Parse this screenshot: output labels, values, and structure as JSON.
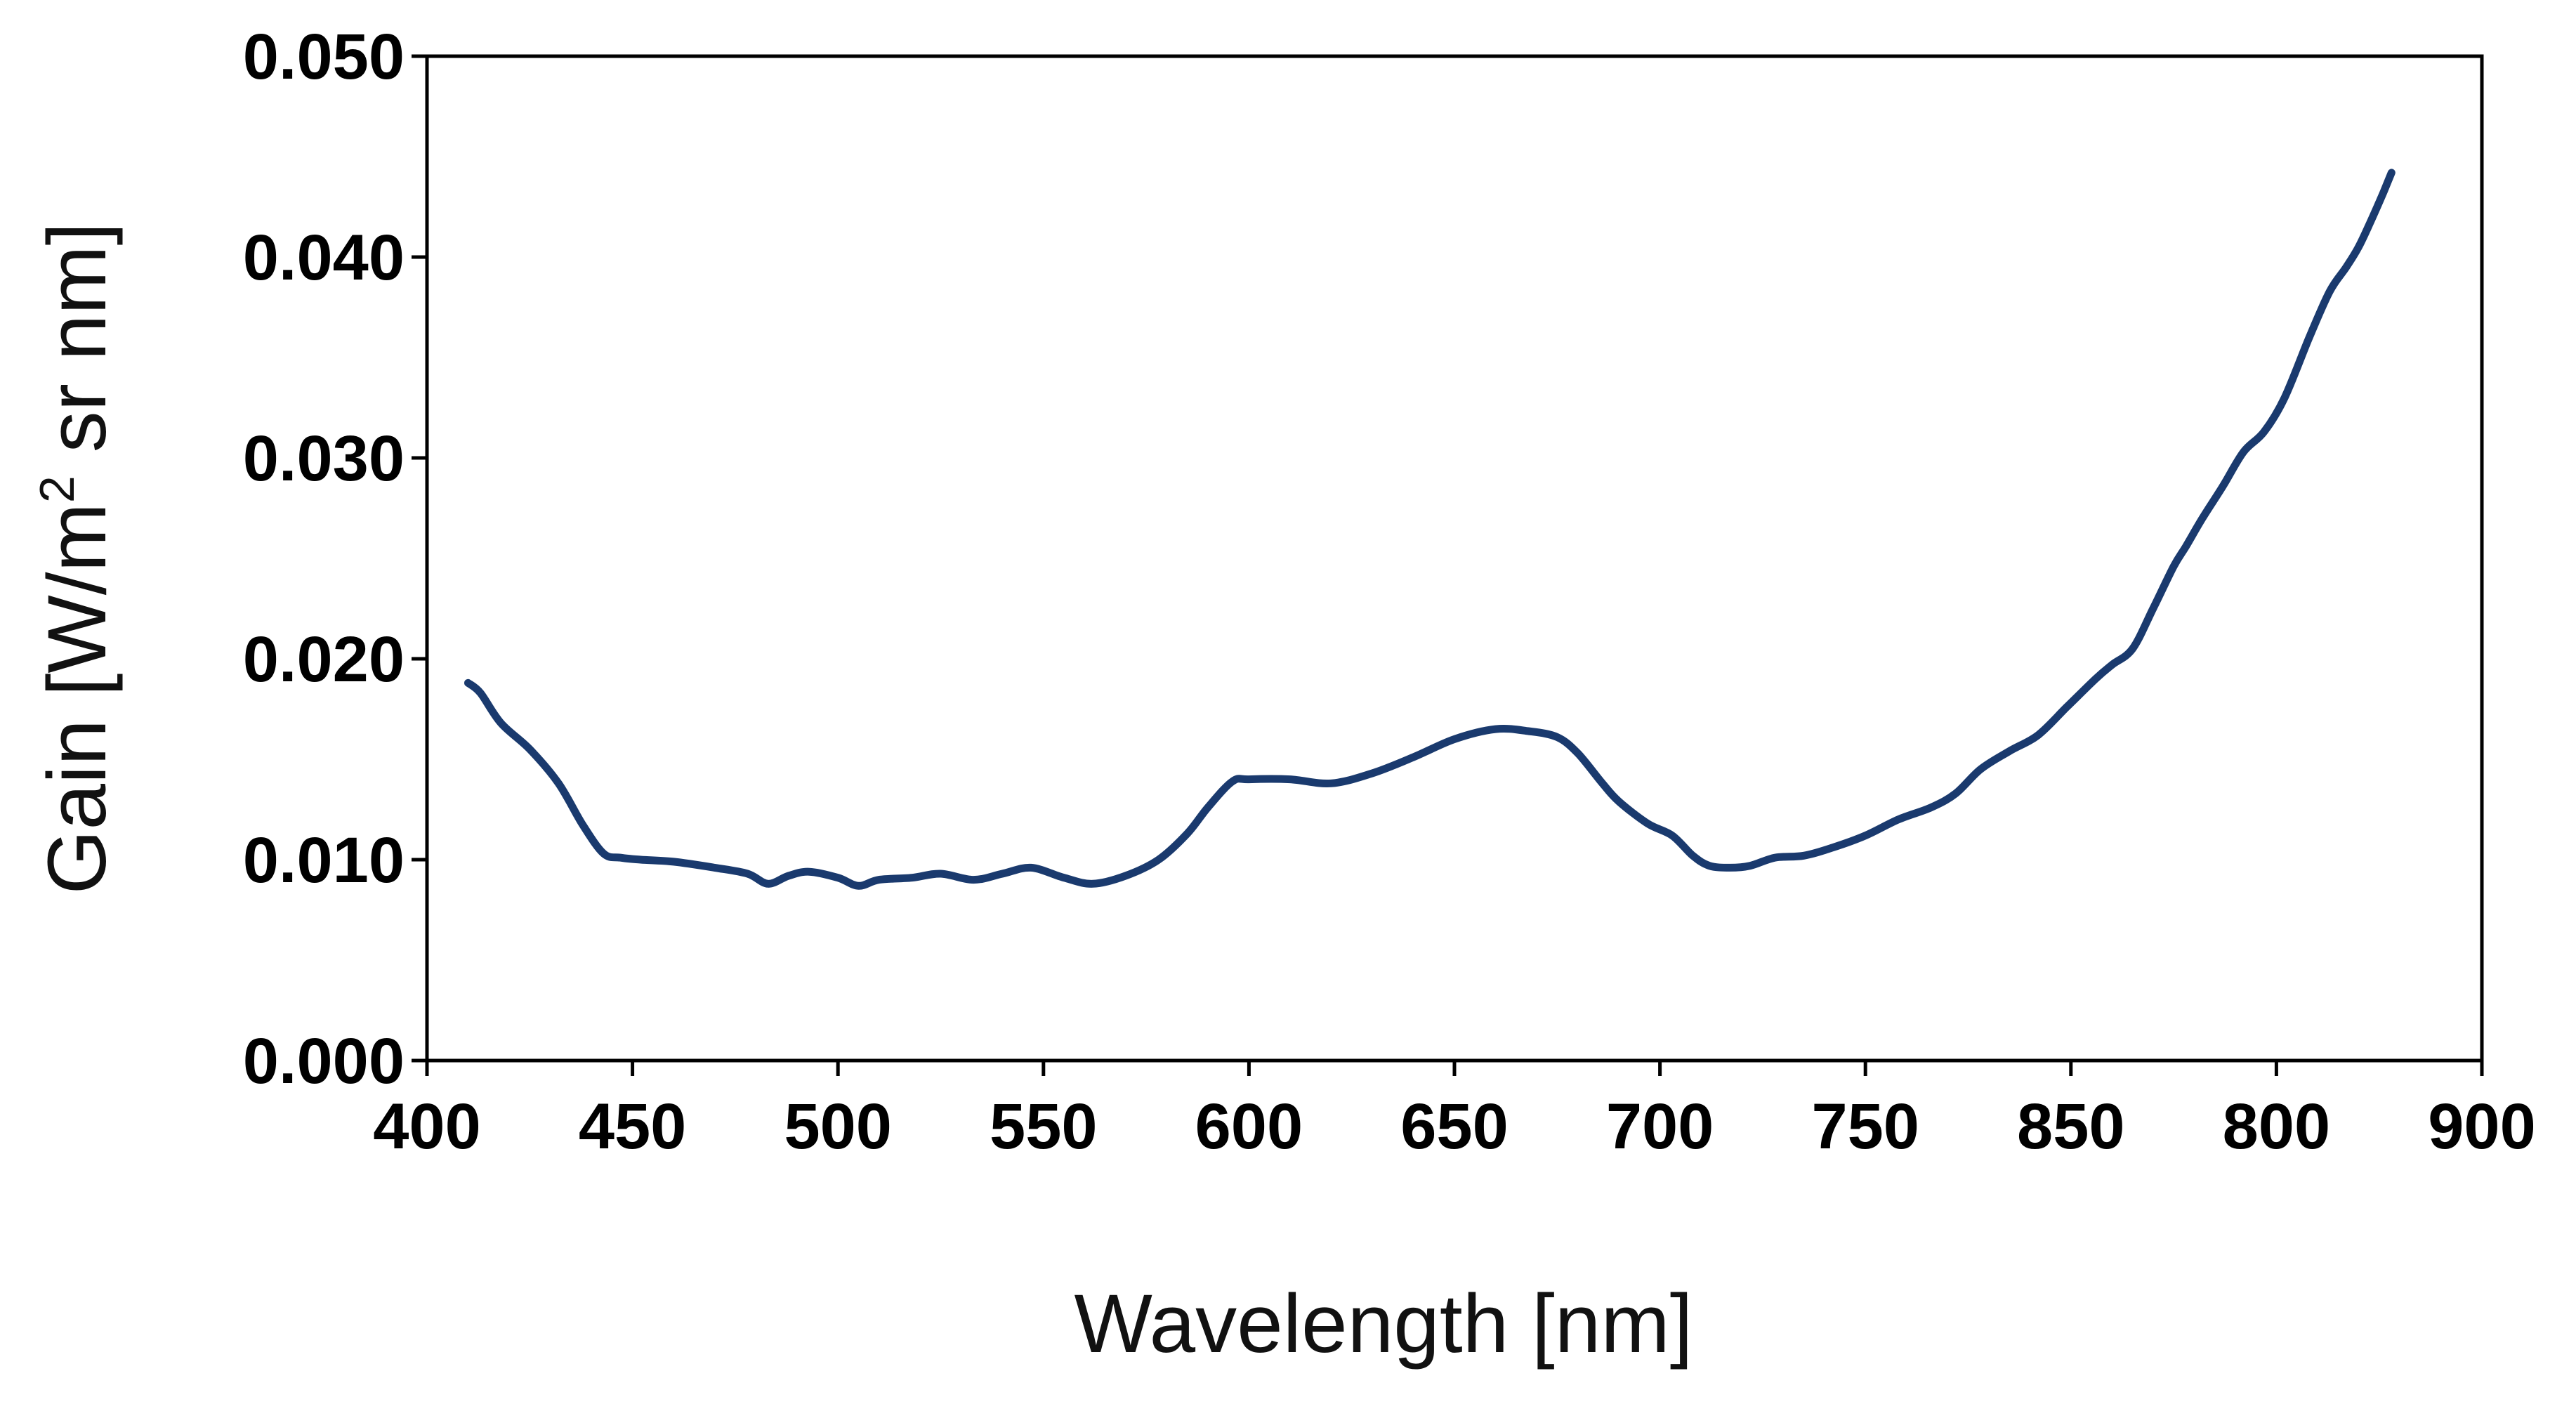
{
  "chart_data": {
    "type": "line",
    "title": "",
    "xlabel": "Wavelength [nm]",
    "ylabel": "Gain [W/m² sr nm]",
    "ylabel_parts": {
      "prefix": "Gain [W/m",
      "superscript": "2",
      "suffix": " sr nm]"
    },
    "x_tick_labels": [
      "400",
      "450",
      "500",
      "550",
      "600",
      "650",
      "700",
      "750",
      "850",
      "800",
      "900"
    ],
    "y_tick_labels": [
      "0.000",
      "0.010",
      "0.020",
      "0.030",
      "0.040",
      "0.050"
    ],
    "ylim": [
      0,
      0.05
    ],
    "grid": false,
    "series": [
      {
        "name": "Gain",
        "color": "#1a3a6e",
        "x": [
          410,
          413,
          418,
          425,
          432,
          438,
          443,
          447,
          452,
          460,
          470,
          478,
          483,
          488,
          493,
          500,
          505,
          510,
          518,
          525,
          533,
          540,
          547,
          555,
          562,
          570,
          578,
          585,
          590,
          596,
          600,
          610,
          620,
          630,
          640,
          650,
          660,
          668,
          675,
          680,
          686,
          690,
          697,
          703,
          708,
          712,
          717,
          722,
          728,
          735,
          742,
          750,
          758,
          766,
          772,
          778,
          785,
          792,
          799,
          806,
          810,
          815,
          820,
          825,
          828,
          832,
          837,
          842,
          847,
          852,
          858,
          863,
          867,
          870,
          873,
          876,
          878
        ],
        "y": [
          0.0188,
          0.0183,
          0.0168,
          0.0155,
          0.0138,
          0.0117,
          0.0103,
          0.0101,
          0.01,
          0.0099,
          0.0096,
          0.0093,
          0.0088,
          0.0092,
          0.0094,
          0.0091,
          0.0087,
          0.009,
          0.0091,
          0.0093,
          0.009,
          0.0093,
          0.0096,
          0.0091,
          0.0088,
          0.0092,
          0.01,
          0.0113,
          0.0126,
          0.0139,
          0.014,
          0.014,
          0.0138,
          0.0143,
          0.0151,
          0.016,
          0.0165,
          0.0164,
          0.0161,
          0.0153,
          0.0138,
          0.0129,
          0.0118,
          0.0112,
          0.0102,
          0.0097,
          0.0096,
          0.0097,
          0.0101,
          0.0102,
          0.0106,
          0.0112,
          0.012,
          0.0126,
          0.0133,
          0.0145,
          0.0154,
          0.0162,
          0.0176,
          0.019,
          0.0197,
          0.0205,
          0.0225,
          0.0246,
          0.0256,
          0.027,
          0.0286,
          0.0303,
          0.0313,
          0.033,
          0.036,
          0.0383,
          0.0395,
          0.0405,
          0.0418,
          0.0432,
          0.0442
        ]
      }
    ]
  }
}
